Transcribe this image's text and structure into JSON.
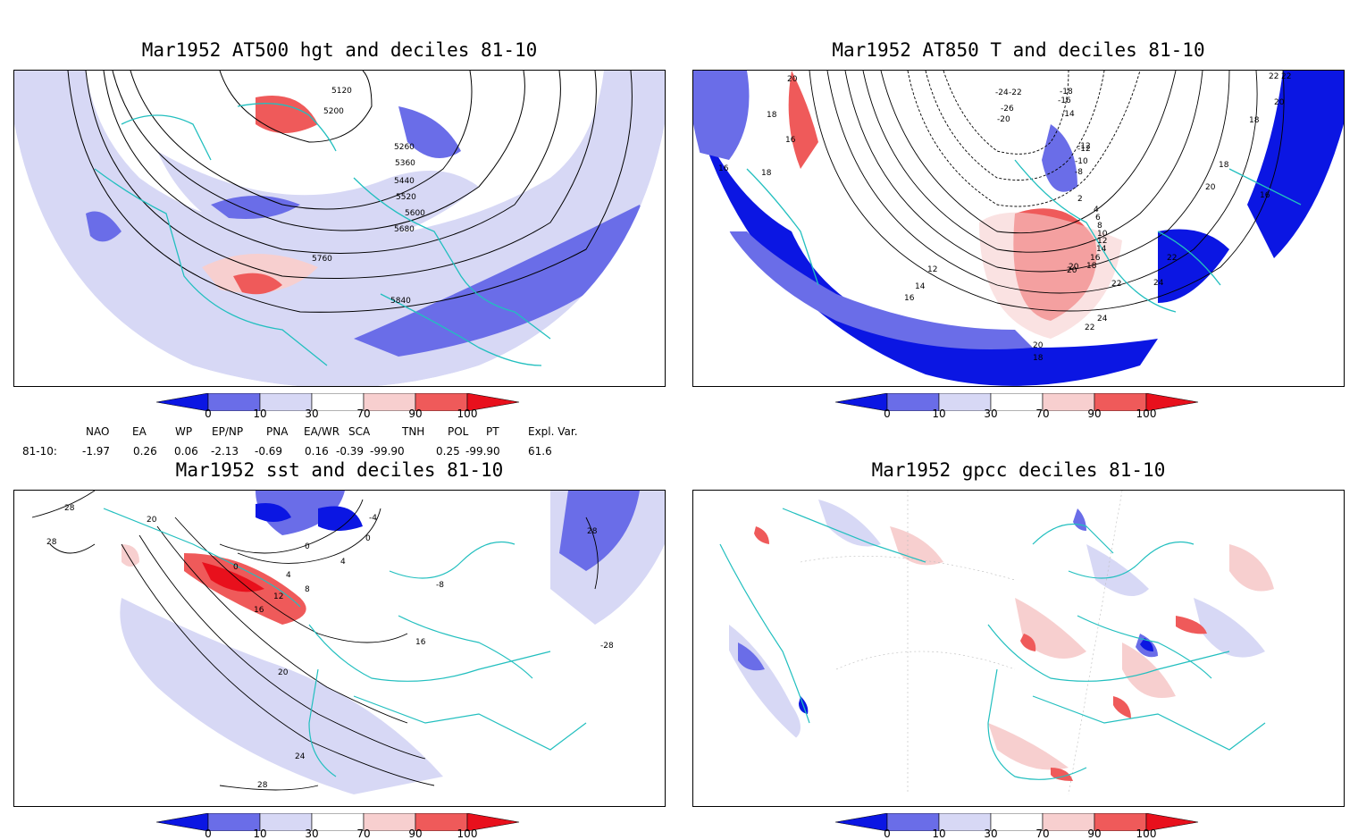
{
  "panels": [
    {
      "title": "Mar1952 AT500 hgt and deciles 81-10",
      "contour_labels": [
        "5120",
        "5200",
        "5260",
        "5360",
        "5440",
        "5520",
        "5600",
        "5680",
        "5760",
        "5840"
      ]
    },
    {
      "title": "Mar1952 AT850 T and deciles 81-10",
      "contour_labels": [
        "20",
        "18",
        "16",
        "16",
        "18",
        "-22",
        "-24",
        "-26",
        "-20",
        "-18",
        "-16",
        "-14",
        "-12",
        "-10",
        "-8",
        "2",
        "4",
        "6",
        "8",
        "10",
        "12",
        "14",
        "16",
        "18",
        "20",
        "22",
        "24",
        "-12",
        "12",
        "14",
        "16",
        "20",
        "24",
        "22",
        "20",
        "18",
        "22",
        "20",
        "18",
        "18",
        "20",
        "16",
        "22",
        "22"
      ]
    },
    {
      "title": "Mar1952 sst and deciles 81-10",
      "contour_labels": [
        "28",
        "28",
        "20",
        "0",
        "0",
        "4",
        "0",
        "4",
        "8",
        "12",
        "16",
        "16",
        "20",
        "24",
        "28",
        "28",
        "-28",
        "-4",
        "-8"
      ]
    },
    {
      "title": "Mar1952 gpcc deciles 81-10",
      "contour_labels": []
    }
  ],
  "colorbar": {
    "ticks": [
      "0",
      "10",
      "30",
      "70",
      "90",
      "100"
    ],
    "colors": [
      "#0b16e3",
      "#6a6de8",
      "#d7d8f5",
      "#ffffff",
      "#f7cfcf",
      "#ef5a5a",
      "#e8101c"
    ]
  },
  "indices": {
    "headers": [
      "NAO",
      "EA",
      "WP",
      "EP/NP",
      "PNA",
      "EA/WR",
      "SCA",
      "TNH",
      "POL",
      "PT",
      "Expl. Var."
    ],
    "row_label": "81-10:",
    "values": [
      "-1.97",
      "0.26",
      "0.06",
      "-2.13",
      "-0.69",
      "0.16",
      "-0.39",
      "-99.90",
      "0.25",
      "-99.90",
      "61.6"
    ]
  },
  "colors": {
    "coastline": "#22bfbf",
    "frame": "#000000",
    "deep_blue": "#0b16e3",
    "mid_blue": "#6a6de8",
    "light_blue": "#d7d8f5",
    "light_red": "#f7cfcf",
    "mid_red": "#ef5a5a",
    "deep_red": "#e8101c"
  }
}
